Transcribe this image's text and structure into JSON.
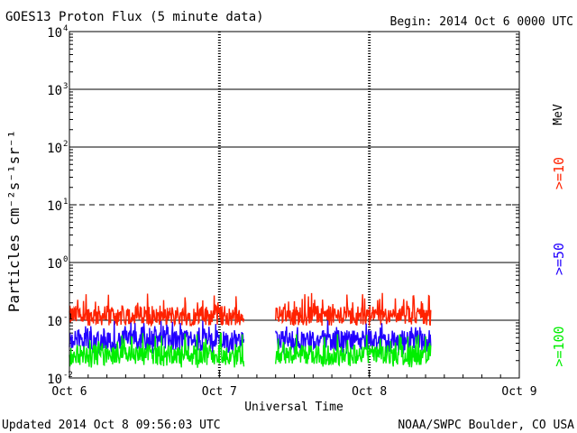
{
  "header": {
    "title": "GOES13 Proton Flux (5 minute data)",
    "begin": "Begin: 2014 Oct 6 0000 UTC"
  },
  "footer": {
    "updated": "Updated 2014 Oct  8 09:56:03 UTC",
    "credit": "NOAA/SWPC Boulder, CO USA"
  },
  "chart_data": {
    "type": "line",
    "title": "GOES13 Proton Flux (5 minute data)",
    "xlabel": "Universal Time",
    "ylabel": "Particles cm⁻²s⁻¹sr⁻¹",
    "yscale": "log",
    "ylim": [
      0.01,
      10000
    ],
    "xlim": [
      "2014-10-06 00:00",
      "2014-10-09 00:00"
    ],
    "x_tick_labels": [
      "Oct 6",
      "Oct 7",
      "Oct 8",
      "Oct 9"
    ],
    "y_tick_labels": [
      {
        "base": "10",
        "exp": "-2"
      },
      {
        "base": "10",
        "exp": "-1"
      },
      {
        "base": "10",
        "exp": "0"
      },
      {
        "base": "10",
        "exp": "1"
      },
      {
        "base": "10",
        "exp": "2"
      },
      {
        "base": "10",
        "exp": "3"
      },
      {
        "base": "10",
        "exp": "4"
      }
    ],
    "reference_lines": [
      {
        "value": 0.1,
        "style": "solid"
      },
      {
        "value": 1,
        "style": "solid"
      },
      {
        "value": 10,
        "style": "dashed"
      },
      {
        "value": 100,
        "style": "solid"
      },
      {
        "value": 1000,
        "style": "solid"
      }
    ],
    "data_gaps": [
      [
        "2014-10-07 04:00",
        "2014-10-07 09:00"
      ]
    ],
    "data_end": "2014-10-08 09:50",
    "series": [
      {
        "name": ">=10",
        "unit": "MeV",
        "color": "#ff2200",
        "typical": 0.12,
        "range": [
          0.08,
          0.3
        ]
      },
      {
        "name": ">=50",
        "color": "#2200ff",
        "typical": 0.045,
        "range": [
          0.025,
          0.1
        ]
      },
      {
        "name": ">=100",
        "color": "#00ee00",
        "typical": 0.025,
        "range": [
          0.015,
          0.06
        ]
      }
    ],
    "legend": {
      "placement": "right",
      "unit": "MeV"
    }
  }
}
